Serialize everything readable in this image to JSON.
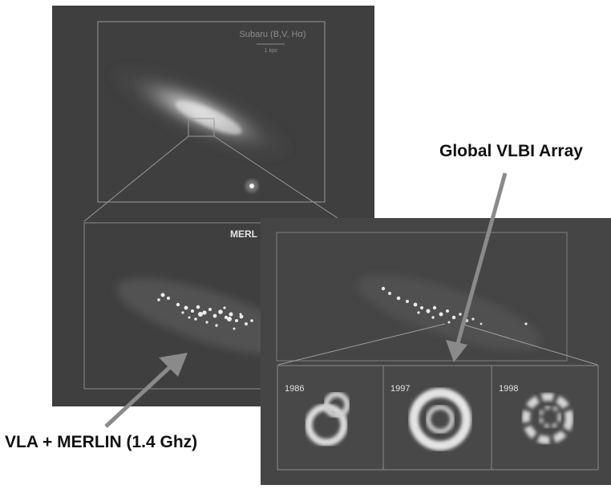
{
  "telescope_labels": {
    "global_vlbi": "Global VLBI Array",
    "vla_merlin": "VLA + MERLIN (1.4 Ghz)"
  },
  "optical_panel": {
    "title": "Subaru (B,V, Hα)",
    "scale": "1 kpc"
  },
  "radio_panel": {
    "title": "MERL"
  },
  "vlbi_panels": {
    "epochs": [
      "1986",
      "1997",
      "1998"
    ]
  },
  "colors": {
    "background": "#ffffff",
    "panel_dark": "#3d3d3d",
    "panel_mid": "#4a4a4a",
    "arrow": "#8a8a8a",
    "label_text": "#111111"
  }
}
